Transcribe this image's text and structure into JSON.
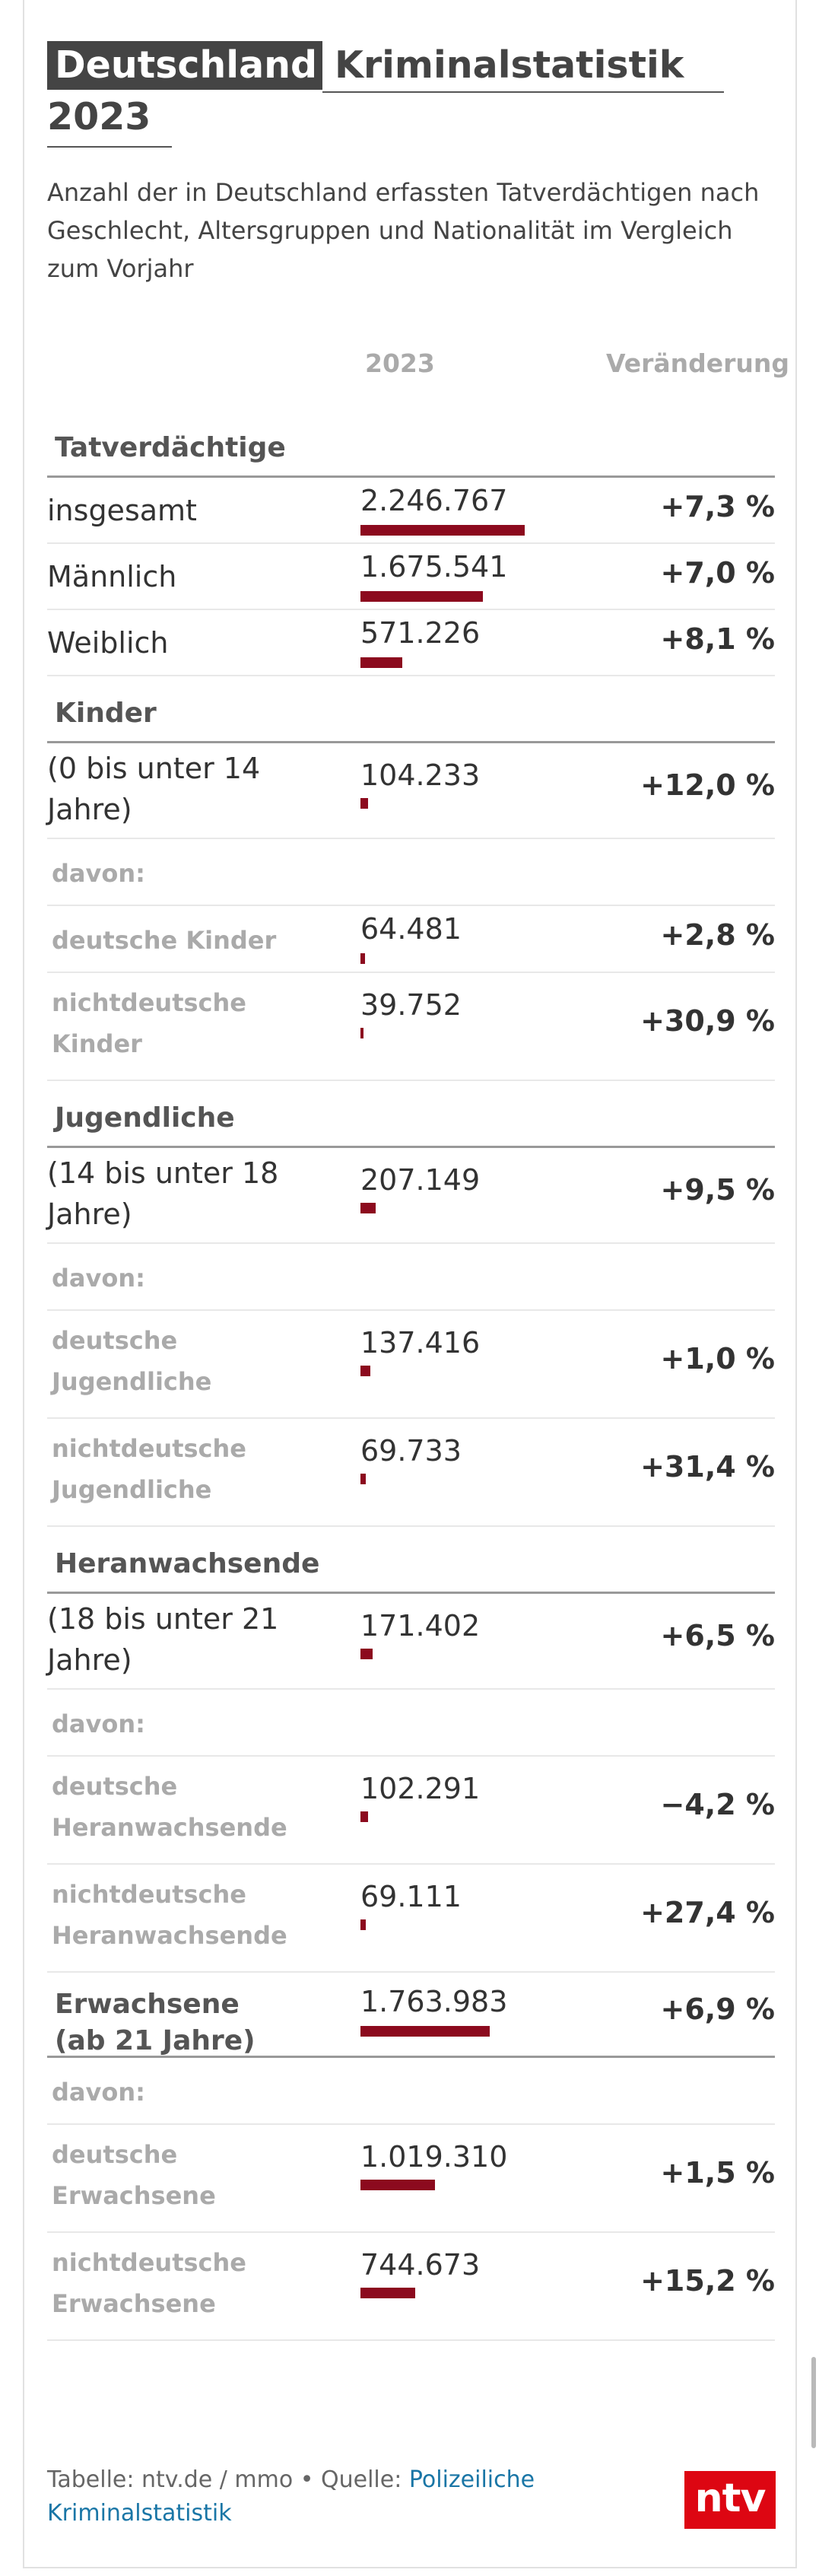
{
  "title": {
    "part1": "Deutschland",
    "part2": "Kriminalstatistik",
    "part3": "2023"
  },
  "subtitle": "Anzahl der in Deutschland erfassten Tatverdächtigen nach Geschlecht, Altersgruppen und Nationalität im Vergleich zum Vorjahr",
  "columns": {
    "year": "2023",
    "change": "Veränderung"
  },
  "colors": {
    "bar": "#8c0a1e",
    "title_bg": "#444444",
    "link": "#1a76a6",
    "logo_bg": "#dd0612"
  },
  "chart_data": {
    "type": "table",
    "title": "Deutschland Kriminalstatistik 2023",
    "subtitle": "Anzahl der in Deutschland erfassten Tatverdächtigen nach Geschlecht, Altersgruppen und Nationalität im Vergleich zum Vorjahr",
    "columns": [
      "2023",
      "Veränderung"
    ],
    "bar_max": 2246767,
    "rows": [
      {
        "kind": "section",
        "label": "Tatverdächtige"
      },
      {
        "kind": "normal",
        "label": "insgesamt",
        "value_text": "2.246.767",
        "value": 2246767,
        "change": "+7,3 %"
      },
      {
        "kind": "normal",
        "label": "Männlich",
        "value_text": "1.675.541",
        "value": 1675541,
        "change": "+7,0 %"
      },
      {
        "kind": "normal",
        "label": "Weiblich",
        "value_text": "571.226",
        "value": 571226,
        "change": "+8,1 %"
      },
      {
        "kind": "section",
        "label": "Kinder"
      },
      {
        "kind": "normal",
        "label": "(0 bis unter 14\nJahre)",
        "value_text": "104.233",
        "value": 104233,
        "change": "+12,0 %"
      },
      {
        "kind": "davon",
        "label": "davon:"
      },
      {
        "kind": "sub",
        "label": "deutsche Kinder",
        "value_text": "64.481",
        "value": 64481,
        "change": "+2,8 %"
      },
      {
        "kind": "sub",
        "label": "nichtdeutsche\nKinder",
        "value_text": "39.752",
        "value": 39752,
        "change": "+30,9 %"
      },
      {
        "kind": "section",
        "label": "Jugendliche"
      },
      {
        "kind": "normal",
        "label": "(14 bis unter 18\nJahre)",
        "value_text": "207.149",
        "value": 207149,
        "change": "+9,5 %"
      },
      {
        "kind": "davon",
        "label": "davon:"
      },
      {
        "kind": "sub",
        "label": "deutsche\nJugendliche",
        "value_text": "137.416",
        "value": 137416,
        "change": "+1,0 %"
      },
      {
        "kind": "sub",
        "label": "nichtdeutsche\nJugendliche",
        "value_text": "69.733",
        "value": 69733,
        "change": "+31,4 %"
      },
      {
        "kind": "section",
        "label": "Heranwachsende"
      },
      {
        "kind": "normal",
        "label": "(18 bis unter 21\nJahre)",
        "value_text": "171.402",
        "value": 171402,
        "change": "+6,5 %"
      },
      {
        "kind": "davon",
        "label": "davon:"
      },
      {
        "kind": "sub",
        "label": "deutsche\nHeranwachsende",
        "value_text": "102.291",
        "value": 102291,
        "change": "−4,2 %"
      },
      {
        "kind": "sub",
        "label": "nichtdeutsche\nHeranwachsende",
        "value_text": "69.111",
        "value": 69111,
        "change": "+27,4 %"
      },
      {
        "kind": "section",
        "label": "Erwachsene\n(ab 21 Jahre)",
        "value_text": "1.763.983",
        "value": 1763983,
        "change": "+6,9 %"
      },
      {
        "kind": "davon",
        "label": "davon:"
      },
      {
        "kind": "sub",
        "label": "deutsche\nErwachsene",
        "value_text": "1.019.310",
        "value": 1019310,
        "change": "+1,5 %"
      },
      {
        "kind": "sub",
        "label": "nichtdeutsche\nErwachsene",
        "value_text": "744.673",
        "value": 744673,
        "change": "+15,2 %"
      }
    ]
  },
  "footer": {
    "prefix": "Tabelle: ntv.de / mmo • Quelle: ",
    "link_text": "Polizeiliche\nKriminalstatistik"
  },
  "logo": {
    "text": "ntv"
  }
}
